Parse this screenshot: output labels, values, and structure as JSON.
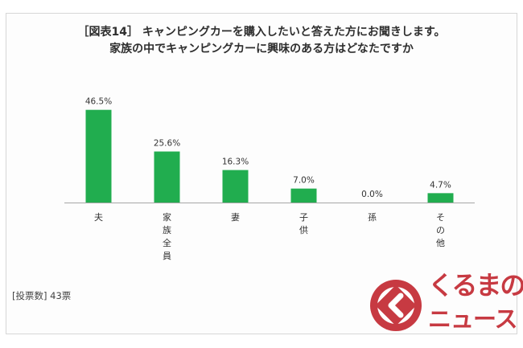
{
  "chart_data": {
    "type": "bar",
    "title_lines": [
      "［図表14］ キャンピングカーを購入したいと答えた方にお聞きします。",
      "家族の中でキャンピングカーに興味のある方はどなたですか"
    ],
    "categories": [
      "夫",
      "家族全員",
      "妻",
      "子供",
      "孫",
      "その他"
    ],
    "values": [
      46.5,
      25.6,
      16.3,
      7.0,
      0.0,
      4.7
    ],
    "value_labels": [
      "46.5%",
      "25.6%",
      "16.3%",
      "7.0%",
      "0.0%",
      "4.7%"
    ],
    "ylim": [
      0,
      50
    ],
    "grid": false,
    "legend": "none"
  },
  "footnote": "[投票数] 43票",
  "logo": {
    "line1": "くるまの",
    "line2": "ニュース"
  },
  "colors": {
    "bar": "#21ad4f",
    "axis": "#a6a6a6",
    "logo": "#c73a42"
  }
}
